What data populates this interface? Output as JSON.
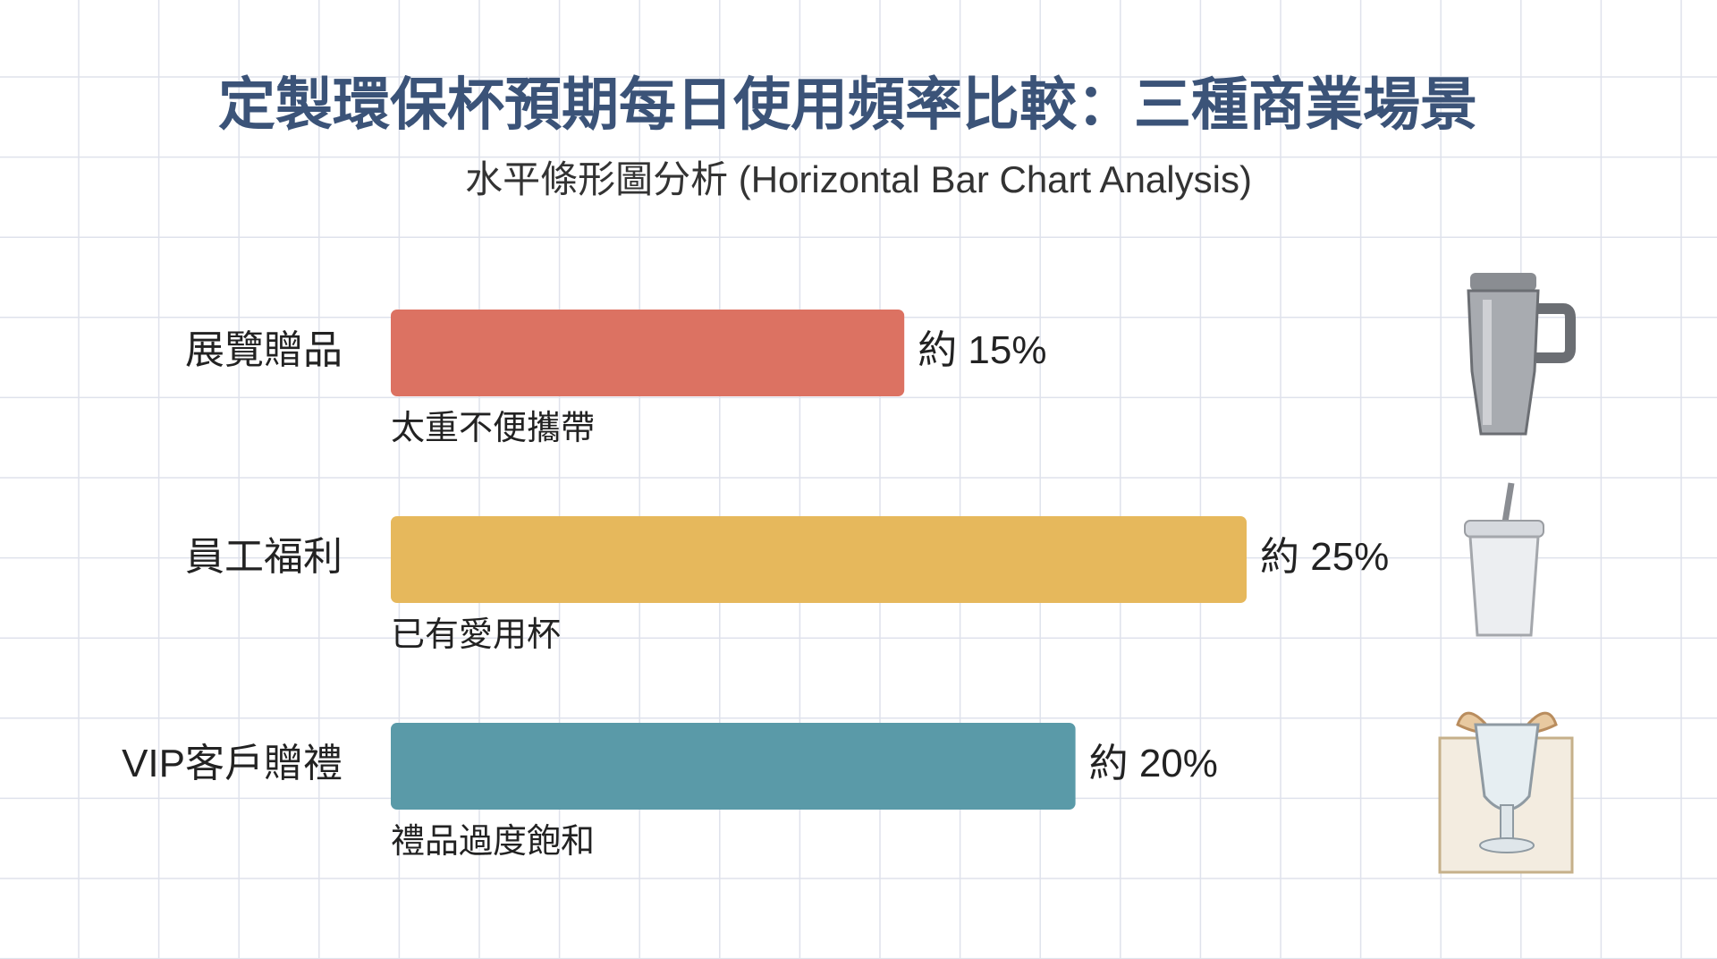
{
  "chart_data": {
    "type": "bar",
    "orientation": "horizontal",
    "title": "定製環保杯預期每日使用頻率比較：三種商業場景",
    "subtitle": "水平條形圖分析 (Horizontal Bar Chart Analysis)",
    "categories": [
      "展覽贈品",
      "員工福利",
      "VIP客戶贈禮"
    ],
    "values": [
      15,
      25,
      20
    ],
    "value_labels": [
      "約 15%",
      "約 25%",
      "約 20%"
    ],
    "notes": [
      "太重不便攜帶",
      "已有愛用杯",
      "禮品過度飽和"
    ],
    "colors": [
      "#dc7262",
      "#e6b85c",
      "#5a9aa8"
    ]
  }
}
